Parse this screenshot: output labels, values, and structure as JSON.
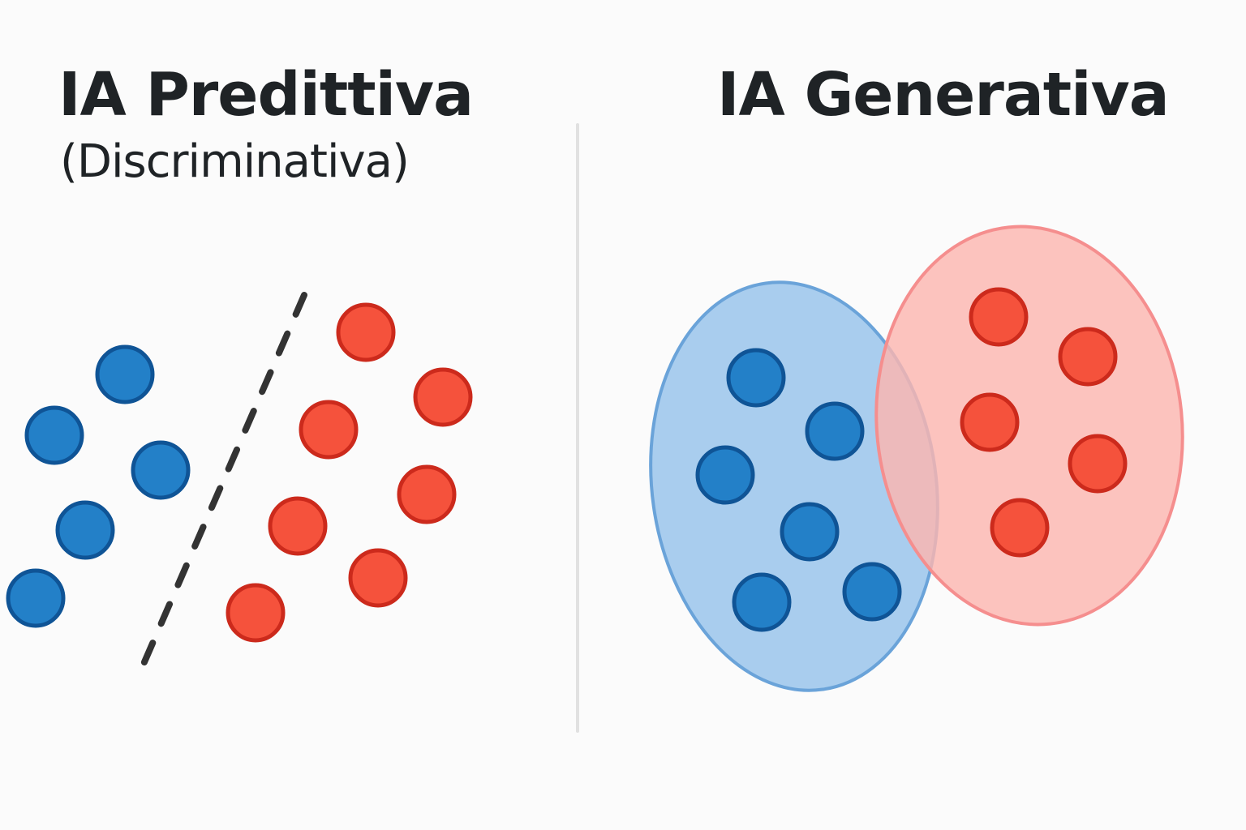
{
  "left_panel": {
    "title": "IA Predittiva",
    "subtitle": "(Discriminativa)"
  },
  "right_panel": {
    "title": "IA Generativa"
  },
  "colors": {
    "class_a_fill": "#2380c8",
    "class_a_stroke": "#0f5496",
    "class_b_fill": "#f5523c",
    "class_b_stroke": "#cc2a1c",
    "region_a_fill": "#a9cdee",
    "region_a_stroke": "#6aa3d9",
    "region_b_fill": "#fbb6b0",
    "region_b_stroke": "#f58e8e",
    "boundary": "#333333",
    "divider": "#e1e1e1"
  },
  "legend_semantics": {
    "left_boundary": "dashed decision boundary separating two classes",
    "right_regions": "two overlapping distributions, one per class"
  }
}
